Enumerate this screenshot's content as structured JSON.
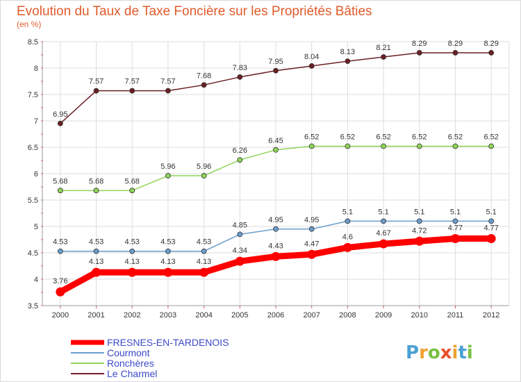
{
  "chart_data": {
    "type": "line",
    "title": "Evolution du Taux de Taxe Foncière sur les Propriétés Bâties",
    "subtitle": "(en %)",
    "x": [
      "2000",
      "2001",
      "2002",
      "2003",
      "2004",
      "2005",
      "2006",
      "2007",
      "2008",
      "2009",
      "2010",
      "2011",
      "2012"
    ],
    "ylim": [
      3.5,
      8.5
    ],
    "yticks": [
      "3.5",
      "4",
      "4.5",
      "5",
      "5.5",
      "6",
      "6.5",
      "7",
      "7.5",
      "8",
      "8.5"
    ],
    "grid": true,
    "legend_position": "bottom-left",
    "series": [
      {
        "name": "Le Charmel",
        "color": "#6b1f23",
        "values": [
          6.95,
          7.57,
          7.57,
          7.57,
          7.68,
          7.83,
          7.95,
          8.04,
          8.13,
          8.21,
          8.29,
          8.29,
          8.29
        ],
        "labels": [
          "6.95",
          "7.57",
          "7.57",
          "7.57",
          "7.68",
          "7.83",
          "7.95",
          "8.04",
          "8.13",
          "8.21",
          "8.29",
          "8.29",
          "8.29"
        ]
      },
      {
        "name": "Ronchères",
        "color": "#8fd45a",
        "values": [
          5.68,
          5.68,
          5.68,
          5.96,
          5.96,
          6.26,
          6.45,
          6.52,
          6.52,
          6.52,
          6.52,
          6.52,
          6.52
        ],
        "labels": [
          "5.68",
          "5.68",
          "5.68",
          "5.96",
          "5.96",
          "6.26",
          "6.45",
          "6.52",
          "6.52",
          "6.52",
          "6.52",
          "6.52",
          "6.52"
        ]
      },
      {
        "name": "Courmont",
        "color": "#6a9ccc",
        "values": [
          4.53,
          4.53,
          4.53,
          4.53,
          4.53,
          4.85,
          4.95,
          4.95,
          5.1,
          5.1,
          5.1,
          5.1,
          5.1
        ],
        "labels": [
          "4.53",
          "4.53",
          "4.53",
          "4.53",
          "4.53",
          "4.85",
          "4.95",
          "4.95",
          "5.1",
          "5.1",
          "5.1",
          "5.1",
          "5.1"
        ]
      },
      {
        "name": "FRESNES-EN-TARDENOIS",
        "color": "#ff0000",
        "values": [
          3.76,
          4.13,
          4.13,
          4.13,
          4.13,
          4.34,
          4.43,
          4.47,
          4.6,
          4.67,
          4.72,
          4.77,
          4.77
        ],
        "labels": [
          "3.76",
          "4.13",
          "4.13",
          "4.13",
          "4.13",
          "4.34",
          "4.43",
          "4.47",
          "4.6",
          "4.67",
          "4.72",
          "4.77",
          "4.77"
        ]
      }
    ],
    "legend": [
      "FRESNES-EN-TARDENOIS",
      "Courmont",
      "Ronchères",
      "Le Charmel"
    ]
  },
  "logo": {
    "letters": [
      "P",
      "r",
      "o",
      "x",
      "i",
      "t",
      "i"
    ],
    "colors": [
      "#4a9fd4",
      "#f0a030",
      "#7bc043",
      "#e8502a",
      "#f0a030",
      "#4a9fd4",
      "#7bc043"
    ]
  }
}
